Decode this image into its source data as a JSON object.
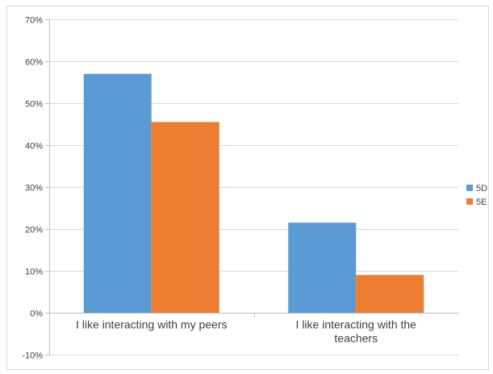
{
  "chart_data": {
    "type": "bar",
    "categories": [
      "I like interacting with my peers",
      "I like interacting with the teachers"
    ],
    "series": [
      {
        "name": "5D",
        "values": [
          0.57,
          0.215
        ],
        "color": "#5b9bd5"
      },
      {
        "name": "5E",
        "values": [
          0.455,
          0.09
        ],
        "color": "#ed7d31"
      }
    ],
    "ylim": [
      -0.1,
      0.7
    ],
    "yticks": [
      -0.1,
      0,
      0.1,
      0.2,
      0.3,
      0.4,
      0.5,
      0.6,
      0.7
    ],
    "ytick_labels": [
      "-10%",
      "0%",
      "10%",
      "20%",
      "30%",
      "40%",
      "50%",
      "60%",
      "70%"
    ],
    "grid": true,
    "legend_position": "right",
    "title": "",
    "xlabel": "",
    "ylabel": ""
  }
}
